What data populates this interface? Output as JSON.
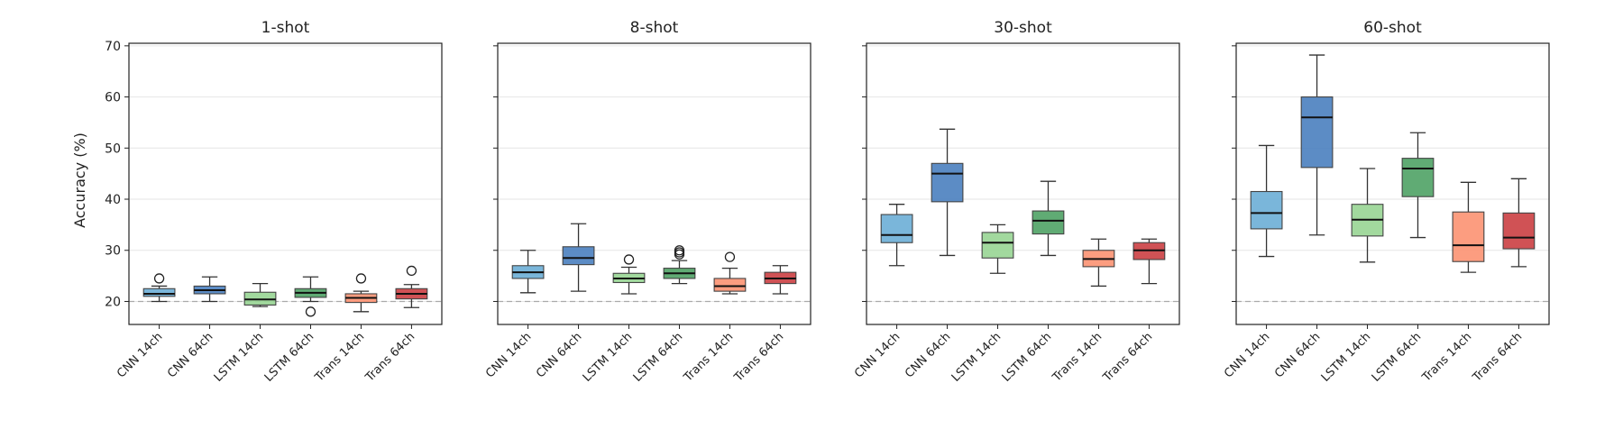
{
  "figure": {
    "ylabel": "Accuracy (%)",
    "yticks": [
      20,
      30,
      40,
      50,
      60,
      70
    ],
    "ylim": [
      15.5,
      70.5
    ],
    "grid": "horizontal",
    "chance_level": 20
  },
  "chart_data": [
    {
      "type": "box",
      "title": "1-shot",
      "categories": [
        "CNN 14ch",
        "CNN 64ch",
        "LSTM 14ch",
        "LSTM 64ch",
        "Trans 14ch",
        "Trans 64ch"
      ],
      "colors": [
        "#6baed6",
        "#4a7fbf",
        "#98d594",
        "#4fa265",
        "#fc9272",
        "#cb3f43"
      ],
      "boxes": [
        {
          "whisker_low": 20.0,
          "q1": 21.0,
          "median": 21.5,
          "q3": 22.5,
          "whisker_high": 23.0,
          "outliers": [
            24.5
          ]
        },
        {
          "whisker_low": 20.0,
          "q1": 21.5,
          "median": 22.2,
          "q3": 23.0,
          "whisker_high": 24.8,
          "outliers": []
        },
        {
          "whisker_low": 19.0,
          "q1": 19.3,
          "median": 20.4,
          "q3": 21.8,
          "whisker_high": 23.5,
          "outliers": []
        },
        {
          "whisker_low": 20.0,
          "q1": 20.8,
          "median": 21.7,
          "q3": 22.5,
          "whisker_high": 24.8,
          "outliers": [
            18.0
          ]
        },
        {
          "whisker_low": 18.0,
          "q1": 19.8,
          "median": 20.7,
          "q3": 21.5,
          "whisker_high": 22.0,
          "outliers": [
            24.5
          ]
        },
        {
          "whisker_low": 18.8,
          "q1": 20.5,
          "median": 21.5,
          "q3": 22.5,
          "whisker_high": 23.3,
          "outliers": [
            26.0
          ]
        }
      ]
    },
    {
      "type": "box",
      "title": "8-shot",
      "categories": [
        "CNN 14ch",
        "CNN 64ch",
        "LSTM 14ch",
        "LSTM 64ch",
        "Trans 14ch",
        "Trans 64ch"
      ],
      "colors": [
        "#6baed6",
        "#4a7fbf",
        "#98d594",
        "#4fa265",
        "#fc9272",
        "#cb3f43"
      ],
      "boxes": [
        {
          "whisker_low": 21.7,
          "q1": 24.5,
          "median": 25.7,
          "q3": 27.0,
          "whisker_high": 30.0,
          "outliers": []
        },
        {
          "whisker_low": 22.0,
          "q1": 27.2,
          "median": 28.5,
          "q3": 30.7,
          "whisker_high": 35.2,
          "outliers": []
        },
        {
          "whisker_low": 21.5,
          "q1": 23.7,
          "median": 24.5,
          "q3": 25.5,
          "whisker_high": 26.7,
          "outliers": [
            28.2
          ]
        },
        {
          "whisker_low": 23.5,
          "q1": 24.5,
          "median": 25.5,
          "q3": 26.5,
          "whisker_high": 28.0,
          "outliers": [
            29.2,
            29.6,
            30.0
          ]
        },
        {
          "whisker_low": 21.5,
          "q1": 22.0,
          "median": 23.0,
          "q3": 24.5,
          "whisker_high": 26.5,
          "outliers": [
            28.7
          ]
        },
        {
          "whisker_low": 21.5,
          "q1": 23.5,
          "median": 24.5,
          "q3": 25.7,
          "whisker_high": 27.0,
          "outliers": []
        }
      ]
    },
    {
      "type": "box",
      "title": "30-shot",
      "categories": [
        "CNN 14ch",
        "CNN 64ch",
        "LSTM 14ch",
        "LSTM 64ch",
        "Trans 14ch",
        "Trans 64ch"
      ],
      "colors": [
        "#6baed6",
        "#4a7fbf",
        "#98d594",
        "#4fa265",
        "#fc9272",
        "#cb3f43"
      ],
      "boxes": [
        {
          "whisker_low": 27.0,
          "q1": 31.5,
          "median": 33.0,
          "q3": 37.0,
          "whisker_high": 39.0,
          "outliers": []
        },
        {
          "whisker_low": 29.0,
          "q1": 39.5,
          "median": 45.0,
          "q3": 47.0,
          "whisker_high": 53.7,
          "outliers": []
        },
        {
          "whisker_low": 25.5,
          "q1": 28.5,
          "median": 31.5,
          "q3": 33.5,
          "whisker_high": 35.0,
          "outliers": []
        },
        {
          "whisker_low": 29.0,
          "q1": 33.2,
          "median": 35.8,
          "q3": 37.7,
          "whisker_high": 43.5,
          "outliers": []
        },
        {
          "whisker_low": 23.0,
          "q1": 26.8,
          "median": 28.3,
          "q3": 30.0,
          "whisker_high": 32.2,
          "outliers": []
        },
        {
          "whisker_low": 23.5,
          "q1": 28.2,
          "median": 30.0,
          "q3": 31.5,
          "whisker_high": 32.2,
          "outliers": []
        }
      ]
    },
    {
      "type": "box",
      "title": "60-shot",
      "categories": [
        "CNN 14ch",
        "CNN 64ch",
        "LSTM 14ch",
        "LSTM 64ch",
        "Trans 14ch",
        "Trans 64ch"
      ],
      "colors": [
        "#6baed6",
        "#4a7fbf",
        "#98d594",
        "#4fa265",
        "#fc9272",
        "#cb3f43"
      ],
      "boxes": [
        {
          "whisker_low": 28.8,
          "q1": 34.2,
          "median": 37.3,
          "q3": 41.5,
          "whisker_high": 50.5,
          "outliers": []
        },
        {
          "whisker_low": 33.0,
          "q1": 46.2,
          "median": 56.0,
          "q3": 60.0,
          "whisker_high": 68.2,
          "outliers": []
        },
        {
          "whisker_low": 27.7,
          "q1": 32.8,
          "median": 36.0,
          "q3": 39.0,
          "whisker_high": 46.0,
          "outliers": []
        },
        {
          "whisker_low": 32.5,
          "q1": 40.5,
          "median": 46.0,
          "q3": 48.0,
          "whisker_high": 53.0,
          "outliers": []
        },
        {
          "whisker_low": 25.7,
          "q1": 27.8,
          "median": 31.0,
          "q3": 37.5,
          "whisker_high": 43.3,
          "outliers": []
        },
        {
          "whisker_low": 26.8,
          "q1": 30.3,
          "median": 32.5,
          "q3": 37.3,
          "whisker_high": 44.0,
          "outliers": []
        }
      ]
    }
  ]
}
